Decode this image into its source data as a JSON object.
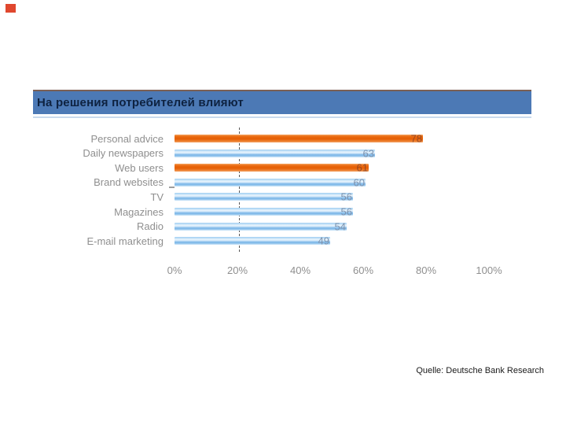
{
  "slide": {
    "background": "#ffffff",
    "logo_color": "#e0472e"
  },
  "title": {
    "text": "На решения потребителей влияют",
    "bg_color": "#4c79b5",
    "text_color": "#0e2240"
  },
  "chart_data": {
    "type": "bar",
    "orientation": "horizontal",
    "title": "На решения потребителей влияют",
    "categories": [
      "Personal advice",
      "Daily newspapers",
      "Web users",
      "Brand websites",
      "TV",
      "Magazines",
      "Radio",
      "E-mail marketing"
    ],
    "values": [
      78,
      63,
      61,
      60,
      56,
      56,
      54,
      49
    ],
    "highlighted_indices": [
      0,
      2
    ],
    "colors": {
      "default_bar": "#8cc0ed",
      "highlight_bar": "#e65f06",
      "value_label": "#7e93ae",
      "category_label": "#8f8f8f",
      "axis_label": "#8f8f8f",
      "reference_line": "#595959"
    },
    "x_ticks": [
      {
        "label": "0%",
        "value": 0
      },
      {
        "label": "20%",
        "value": 20
      },
      {
        "label": "40%",
        "value": 40
      },
      {
        "label": "60%",
        "value": 60
      },
      {
        "label": "80%",
        "value": 80
      },
      {
        "label": "100%",
        "value": 100
      }
    ],
    "xlim": [
      0,
      100
    ],
    "grid": false,
    "reference_line_value": 20,
    "legend": "none"
  },
  "source": {
    "text": "Quelle: Deutsche Bank Research"
  }
}
